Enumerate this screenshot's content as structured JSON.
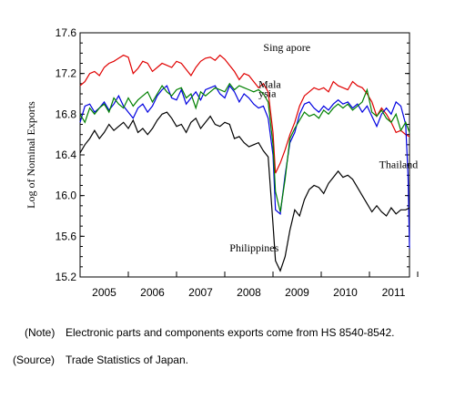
{
  "chart_data": {
    "type": "line",
    "title": "",
    "xlabel": "",
    "ylabel": "Log of Nominal Exports",
    "xlim": [
      2004.5,
      2011.33
    ],
    "ylim": [
      15.2,
      17.6
    ],
    "y_ticks": [
      "17.6",
      "17.2",
      "16.8",
      "16.4",
      "16.0",
      "15.6",
      "15.2"
    ],
    "x_tick_labels": [
      "2005",
      "2006",
      "2007",
      "2008",
      "2009",
      "2010",
      "2011"
    ],
    "grid": false,
    "series": [
      {
        "name": "Singapore",
        "color": "#e00000",
        "points": [
          [
            2004.5,
            17.08
          ],
          [
            2004.6,
            17.12
          ],
          [
            2004.7,
            17.2
          ],
          [
            2004.8,
            17.22
          ],
          [
            2004.9,
            17.18
          ],
          [
            2005.0,
            17.26
          ],
          [
            2005.1,
            17.3
          ],
          [
            2005.2,
            17.32
          ],
          [
            2005.3,
            17.35
          ],
          [
            2005.4,
            17.38
          ],
          [
            2005.5,
            17.36
          ],
          [
            2005.6,
            17.2
          ],
          [
            2005.7,
            17.25
          ],
          [
            2005.8,
            17.32
          ],
          [
            2005.9,
            17.3
          ],
          [
            2006.0,
            17.22
          ],
          [
            2006.1,
            17.26
          ],
          [
            2006.2,
            17.3
          ],
          [
            2006.3,
            17.28
          ],
          [
            2006.4,
            17.26
          ],
          [
            2006.5,
            17.32
          ],
          [
            2006.6,
            17.3
          ],
          [
            2006.7,
            17.24
          ],
          [
            2006.8,
            17.18
          ],
          [
            2006.9,
            17.26
          ],
          [
            2007.0,
            17.32
          ],
          [
            2007.1,
            17.35
          ],
          [
            2007.2,
            17.36
          ],
          [
            2007.3,
            17.33
          ],
          [
            2007.4,
            17.38
          ],
          [
            2007.5,
            17.34
          ],
          [
            2007.6,
            17.28
          ],
          [
            2007.7,
            17.22
          ],
          [
            2007.8,
            17.14
          ],
          [
            2007.9,
            17.2
          ],
          [
            2008.0,
            17.18
          ],
          [
            2008.1,
            17.12
          ],
          [
            2008.2,
            17.06
          ],
          [
            2008.3,
            17.1
          ],
          [
            2008.4,
            17.02
          ],
          [
            2008.5,
            16.62
          ],
          [
            2008.55,
            16.22
          ],
          [
            2008.65,
            16.32
          ],
          [
            2008.75,
            16.45
          ],
          [
            2008.85,
            16.6
          ],
          [
            2008.95,
            16.72
          ],
          [
            2009.05,
            16.88
          ],
          [
            2009.15,
            16.98
          ],
          [
            2009.25,
            17.02
          ],
          [
            2009.35,
            17.06
          ],
          [
            2009.45,
            17.04
          ],
          [
            2009.55,
            17.06
          ],
          [
            2009.65,
            17.02
          ],
          [
            2009.75,
            17.12
          ],
          [
            2009.85,
            17.08
          ],
          [
            2009.95,
            17.06
          ],
          [
            2010.05,
            17.04
          ],
          [
            2010.15,
            17.12
          ],
          [
            2010.25,
            17.08
          ],
          [
            2010.35,
            17.06
          ],
          [
            2010.45,
            17.0
          ],
          [
            2010.55,
            16.92
          ],
          [
            2010.65,
            16.78
          ],
          [
            2010.75,
            16.86
          ],
          [
            2010.85,
            16.8
          ],
          [
            2010.95,
            16.72
          ],
          [
            2011.05,
            16.62
          ],
          [
            2011.15,
            16.64
          ],
          [
            2011.25,
            16.6
          ],
          [
            2011.33,
            16.58
          ]
        ]
      },
      {
        "name": "Malaysia",
        "color": "#0000e0",
        "points": [
          [
            2004.5,
            16.72
          ],
          [
            2004.6,
            16.88
          ],
          [
            2004.7,
            16.9
          ],
          [
            2004.8,
            16.82
          ],
          [
            2004.9,
            16.86
          ],
          [
            2005.0,
            16.92
          ],
          [
            2005.1,
            16.84
          ],
          [
            2005.2,
            16.9
          ],
          [
            2005.3,
            16.98
          ],
          [
            2005.4,
            16.88
          ],
          [
            2005.5,
            16.82
          ],
          [
            2005.6,
            16.76
          ],
          [
            2005.7,
            16.86
          ],
          [
            2005.8,
            16.9
          ],
          [
            2005.9,
            16.82
          ],
          [
            2006.0,
            16.88
          ],
          [
            2006.1,
            16.98
          ],
          [
            2006.2,
            17.04
          ],
          [
            2006.3,
            17.08
          ],
          [
            2006.4,
            16.96
          ],
          [
            2006.5,
            16.94
          ],
          [
            2006.6,
            17.04
          ],
          [
            2006.7,
            16.9
          ],
          [
            2006.8,
            16.96
          ],
          [
            2006.9,
            17.02
          ],
          [
            2007.0,
            16.94
          ],
          [
            2007.1,
            17.04
          ],
          [
            2007.2,
            17.06
          ],
          [
            2007.3,
            17.08
          ],
          [
            2007.4,
            17.0
          ],
          [
            2007.5,
            16.96
          ],
          [
            2007.6,
            17.08
          ],
          [
            2007.7,
            17.02
          ],
          [
            2007.8,
            16.92
          ],
          [
            2007.9,
            17.0
          ],
          [
            2008.0,
            16.96
          ],
          [
            2008.1,
            16.9
          ],
          [
            2008.2,
            16.86
          ],
          [
            2008.3,
            16.88
          ],
          [
            2008.4,
            16.76
          ],
          [
            2008.5,
            16.4
          ],
          [
            2008.55,
            15.86
          ],
          [
            2008.65,
            15.82
          ],
          [
            2008.75,
            16.2
          ],
          [
            2008.85,
            16.52
          ],
          [
            2008.95,
            16.62
          ],
          [
            2009.05,
            16.8
          ],
          [
            2009.15,
            16.9
          ],
          [
            2009.25,
            16.92
          ],
          [
            2009.35,
            16.86
          ],
          [
            2009.45,
            16.82
          ],
          [
            2009.55,
            16.88
          ],
          [
            2009.65,
            16.84
          ],
          [
            2009.75,
            16.9
          ],
          [
            2009.85,
            16.94
          ],
          [
            2009.95,
            16.9
          ],
          [
            2010.05,
            16.92
          ],
          [
            2010.15,
            16.86
          ],
          [
            2010.25,
            16.9
          ],
          [
            2010.35,
            16.82
          ],
          [
            2010.45,
            16.88
          ],
          [
            2010.55,
            16.78
          ],
          [
            2010.65,
            16.68
          ],
          [
            2010.75,
            16.8
          ],
          [
            2010.85,
            16.86
          ],
          [
            2010.95,
            16.8
          ],
          [
            2011.05,
            16.92
          ],
          [
            2011.15,
            16.88
          ],
          [
            2011.25,
            16.7
          ],
          [
            2011.3,
            16.2
          ],
          [
            2011.33,
            15.48
          ]
        ]
      },
      {
        "name": "Thailand",
        "color": "#008000",
        "points": [
          [
            2004.5,
            16.8
          ],
          [
            2004.6,
            16.72
          ],
          [
            2004.7,
            16.86
          ],
          [
            2004.8,
            16.8
          ],
          [
            2004.9,
            16.86
          ],
          [
            2005.0,
            16.9
          ],
          [
            2005.1,
            16.82
          ],
          [
            2005.2,
            16.96
          ],
          [
            2005.3,
            16.9
          ],
          [
            2005.4,
            16.86
          ],
          [
            2005.5,
            16.96
          ],
          [
            2005.6,
            16.88
          ],
          [
            2005.7,
            16.94
          ],
          [
            2005.8,
            16.98
          ],
          [
            2005.9,
            17.02
          ],
          [
            2006.0,
            16.92
          ],
          [
            2006.1,
            17.0
          ],
          [
            2006.2,
            17.08
          ],
          [
            2006.3,
            17.02
          ],
          [
            2006.4,
            16.98
          ],
          [
            2006.5,
            17.04
          ],
          [
            2006.6,
            17.06
          ],
          [
            2006.7,
            16.96
          ],
          [
            2006.8,
            17.0
          ],
          [
            2006.9,
            16.86
          ],
          [
            2007.0,
            17.02
          ],
          [
            2007.1,
            16.98
          ],
          [
            2007.2,
            17.02
          ],
          [
            2007.3,
            17.06
          ],
          [
            2007.4,
            17.04
          ],
          [
            2007.5,
            17.02
          ],
          [
            2007.6,
            17.1
          ],
          [
            2007.7,
            17.04
          ],
          [
            2007.8,
            17.08
          ],
          [
            2007.9,
            17.06
          ],
          [
            2008.0,
            17.04
          ],
          [
            2008.1,
            17.02
          ],
          [
            2008.2,
            17.04
          ],
          [
            2008.3,
            17.0
          ],
          [
            2008.4,
            16.92
          ],
          [
            2008.5,
            16.5
          ],
          [
            2008.55,
            16.04
          ],
          [
            2008.65,
            15.84
          ],
          [
            2008.75,
            16.16
          ],
          [
            2008.85,
            16.56
          ],
          [
            2008.95,
            16.66
          ],
          [
            2009.05,
            16.74
          ],
          [
            2009.15,
            16.82
          ],
          [
            2009.25,
            16.78
          ],
          [
            2009.35,
            16.8
          ],
          [
            2009.45,
            16.76
          ],
          [
            2009.55,
            16.84
          ],
          [
            2009.65,
            16.8
          ],
          [
            2009.75,
            16.86
          ],
          [
            2009.85,
            16.9
          ],
          [
            2009.95,
            16.86
          ],
          [
            2010.05,
            16.9
          ],
          [
            2010.15,
            16.84
          ],
          [
            2010.25,
            16.88
          ],
          [
            2010.35,
            16.92
          ],
          [
            2010.45,
            17.04
          ],
          [
            2010.55,
            16.82
          ],
          [
            2010.65,
            16.78
          ],
          [
            2010.75,
            16.84
          ],
          [
            2010.85,
            16.76
          ],
          [
            2010.95,
            16.72
          ],
          [
            2011.05,
            16.8
          ],
          [
            2011.15,
            16.64
          ],
          [
            2011.25,
            16.72
          ],
          [
            2011.33,
            16.62
          ]
        ]
      },
      {
        "name": "Philippines",
        "color": "#000000",
        "points": [
          [
            2004.5,
            16.42
          ],
          [
            2004.6,
            16.5
          ],
          [
            2004.7,
            16.56
          ],
          [
            2004.8,
            16.64
          ],
          [
            2004.9,
            16.56
          ],
          [
            2005.0,
            16.62
          ],
          [
            2005.1,
            16.7
          ],
          [
            2005.2,
            16.64
          ],
          [
            2005.3,
            16.68
          ],
          [
            2005.4,
            16.72
          ],
          [
            2005.5,
            16.66
          ],
          [
            2005.6,
            16.74
          ],
          [
            2005.7,
            16.62
          ],
          [
            2005.8,
            16.66
          ],
          [
            2005.9,
            16.6
          ],
          [
            2006.0,
            16.66
          ],
          [
            2006.1,
            16.74
          ],
          [
            2006.2,
            16.8
          ],
          [
            2006.3,
            16.82
          ],
          [
            2006.4,
            16.76
          ],
          [
            2006.5,
            16.68
          ],
          [
            2006.6,
            16.7
          ],
          [
            2006.7,
            16.62
          ],
          [
            2006.8,
            16.72
          ],
          [
            2006.9,
            16.76
          ],
          [
            2007.0,
            16.66
          ],
          [
            2007.1,
            16.72
          ],
          [
            2007.2,
            16.78
          ],
          [
            2007.3,
            16.7
          ],
          [
            2007.4,
            16.68
          ],
          [
            2007.5,
            16.72
          ],
          [
            2007.6,
            16.7
          ],
          [
            2007.7,
            16.56
          ],
          [
            2007.8,
            16.58
          ],
          [
            2007.9,
            16.52
          ],
          [
            2008.0,
            16.48
          ],
          [
            2008.1,
            16.5
          ],
          [
            2008.2,
            16.52
          ],
          [
            2008.3,
            16.44
          ],
          [
            2008.4,
            16.38
          ],
          [
            2008.5,
            15.72
          ],
          [
            2008.55,
            15.36
          ],
          [
            2008.65,
            15.26
          ],
          [
            2008.75,
            15.4
          ],
          [
            2008.85,
            15.66
          ],
          [
            2008.95,
            15.86
          ],
          [
            2009.05,
            15.8
          ],
          [
            2009.15,
            15.96
          ],
          [
            2009.25,
            16.06
          ],
          [
            2009.35,
            16.1
          ],
          [
            2009.45,
            16.08
          ],
          [
            2009.55,
            16.02
          ],
          [
            2009.65,
            16.12
          ],
          [
            2009.75,
            16.18
          ],
          [
            2009.85,
            16.24
          ],
          [
            2009.95,
            16.18
          ],
          [
            2010.05,
            16.2
          ],
          [
            2010.15,
            16.16
          ],
          [
            2010.25,
            16.08
          ],
          [
            2010.35,
            16.0
          ],
          [
            2010.45,
            15.92
          ],
          [
            2010.55,
            15.84
          ],
          [
            2010.65,
            15.9
          ],
          [
            2010.75,
            15.84
          ],
          [
            2010.85,
            15.8
          ],
          [
            2010.95,
            15.88
          ],
          [
            2011.05,
            15.82
          ],
          [
            2011.15,
            15.86
          ],
          [
            2011.25,
            15.86
          ],
          [
            2011.33,
            15.88
          ]
        ]
      }
    ],
    "annotations": [
      {
        "text": "Sing apore",
        "x": 2008.3,
        "y": 17.42
      },
      {
        "text": "Mala",
        "x": 2008.2,
        "y": 17.06
      },
      {
        "text": "ysia",
        "x": 2008.2,
        "y": 16.97
      },
      {
        "text": "Thailand",
        "x": 2010.7,
        "y": 16.27
      },
      {
        "text": "Philippines",
        "x": 2007.6,
        "y": 15.45
      }
    ]
  },
  "notes": [
    {
      "tag": "(Note)",
      "text": "Electronic parts and components exports come from HS 8540-8542."
    },
    {
      "tag": "(Source)",
      "text": "Trade Statistics of Japan."
    }
  ]
}
